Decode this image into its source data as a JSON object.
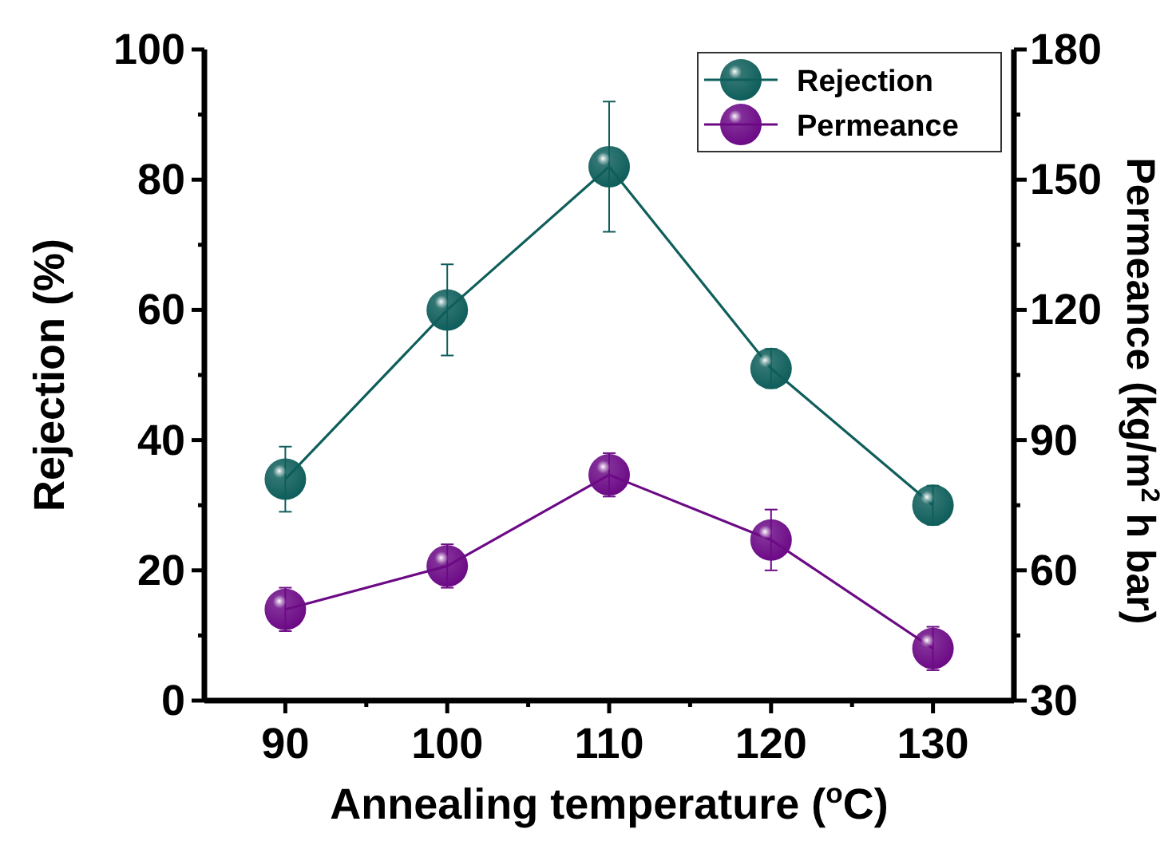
{
  "chart_data": {
    "type": "line",
    "xlabel": "Annealing temperature ($^{o}$C)",
    "ylabel": "Rejection (%)",
    "y2label": "Permeance (kg/m$^{2}$ h bar)",
    "x": [
      90,
      100,
      110,
      120,
      130
    ],
    "xlim": [
      85,
      135
    ],
    "xticks": [
      90,
      {
        "value": 95,
        "label": null
      },
      100,
      {
        "value": 105,
        "label": null
      },
      110,
      {
        "value": 115,
        "label": null
      },
      120,
      {
        "value": 125,
        "label": null
      },
      130
    ],
    "ylim": [
      0,
      100
    ],
    "yticks": [
      0,
      {
        "value": 10,
        "label": null
      },
      20,
      {
        "value": 30,
        "label": null
      },
      40,
      {
        "value": 50,
        "label": null
      },
      60,
      {
        "value": 70,
        "label": null
      },
      80,
      {
        "value": 90,
        "label": null
      },
      100
    ],
    "y2lim": [
      30,
      180
    ],
    "y2ticks": [
      30,
      {
        "value": 45,
        "label": null
      },
      60,
      {
        "value": 75,
        "label": null
      },
      90,
      {
        "value": 105,
        "label": null
      },
      120,
      {
        "value": 135,
        "label": null
      },
      150,
      {
        "value": 165,
        "label": null
      },
      180
    ],
    "series": [
      {
        "name": "Rejection",
        "color": "#0e5e5b",
        "values": [
          34,
          60,
          82,
          51,
          30
        ],
        "errors": [
          5,
          7,
          10,
          3,
          3
        ]
      },
      {
        "name": "Permeance",
        "color": "#6c0a86",
        "axis": "y2",
        "values": [
          51,
          61,
          82,
          67,
          42
        ],
        "errors": [
          5,
          5,
          5,
          7,
          5
        ]
      }
    ],
    "legend": "top right",
    "grid": false,
    "marker": "circle",
    "line_style": "solid"
  }
}
